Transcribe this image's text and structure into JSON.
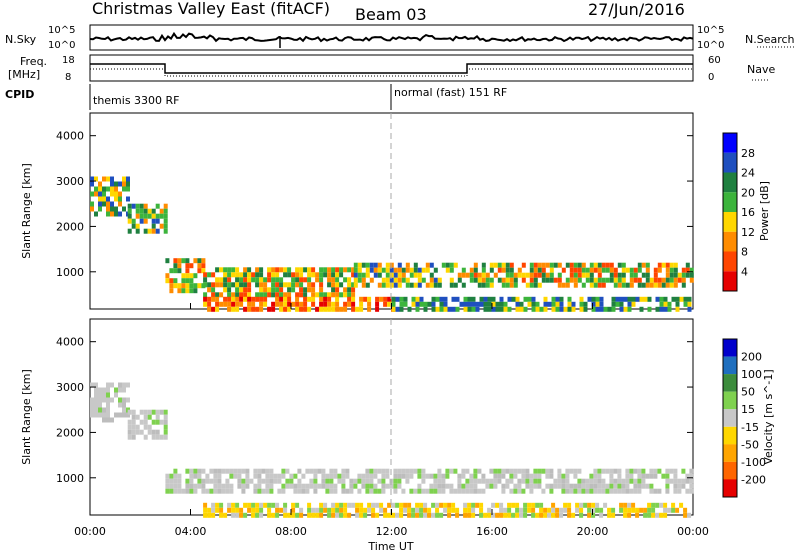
{
  "header": {
    "title": "Christmas Valley East (fitACF)",
    "beam": "Beam 03",
    "date": "27/Jun/2016"
  },
  "panels": {
    "nsky": {
      "label": "N.Sky",
      "y_ticks": [
        "10^5",
        "10^0"
      ],
      "right_label": "N.Search",
      "right_ticks": [
        "10^5",
        "10^0"
      ]
    },
    "freq": {
      "label_top": "Freq.",
      "label_bottom": "[MHz]",
      "y_ticks": [
        "18",
        "8"
      ],
      "right_label": "Nave",
      "right_ticks": [
        "60",
        "0"
      ]
    },
    "cpid": {
      "label": "CPID",
      "modes": [
        "themis 3300 RF",
        "normal (fast) 151 RF"
      ]
    }
  },
  "x_axis": {
    "label": "Time UT",
    "ticks": [
      "00:00",
      "04:00",
      "08:00",
      "12:00",
      "16:00",
      "20:00",
      "00:00"
    ]
  },
  "chart_data": [
    {
      "type": "heatmap",
      "name": "power",
      "ylabel": "Slant Range [km]",
      "yticks": [
        1000,
        2000,
        3000,
        4000
      ],
      "ylim": [
        180,
        4500
      ],
      "xlim_hours": [
        0,
        24
      ],
      "colorbar_label": "Power [dB]",
      "colorbar_ticks": [
        4,
        8,
        12,
        16,
        20,
        24,
        28
      ],
      "colorbar_colors": [
        "#0000ff",
        "#1f4fbf",
        "#1f8040",
        "#3cb43c",
        "#ffd700",
        "#ff8c00",
        "#ff4500",
        "#e60000"
      ],
      "bands": [
        {
          "t": [
            0.0,
            1.5
          ],
          "r": [
            2300,
            3100
          ],
          "level": "mid"
        },
        {
          "t": [
            1.5,
            3.0
          ],
          "r": [
            1900,
            2500
          ],
          "level": "mid"
        },
        {
          "t": [
            3.0,
            4.5
          ],
          "r": [
            600,
            1300
          ],
          "level": "high"
        },
        {
          "t": [
            4.5,
            10.5
          ],
          "r": [
            450,
            1100
          ],
          "level": "high"
        },
        {
          "t": [
            4.5,
            12.0
          ],
          "r": [
            200,
            450
          ],
          "level": "peak"
        },
        {
          "t": [
            10.5,
            14.0
          ],
          "r": [
            700,
            1200
          ],
          "level": "mid"
        },
        {
          "t": [
            14.0,
            23.9
          ],
          "r": [
            650,
            1200
          ],
          "level": "high"
        },
        {
          "t": [
            12.0,
            23.9
          ],
          "r": [
            200,
            450
          ],
          "level": "low"
        }
      ]
    },
    {
      "type": "heatmap",
      "name": "velocity",
      "ylabel": "Slant Range [km]",
      "yticks": [
        1000,
        2000,
        3000,
        4000
      ],
      "ylim": [
        180,
        4500
      ],
      "xlim_hours": [
        0,
        24
      ],
      "colorbar_label": "Velocity [m s^-1]",
      "colorbar_ticks": [
        200,
        100,
        50,
        15,
        -15,
        -50,
        -100,
        -200
      ],
      "colorbar_colors": [
        "#0000cc",
        "#1f6fbf",
        "#3c8c3c",
        "#7fd14f",
        "#c8c8c8",
        "#ffd700",
        "#ffa500",
        "#ff6600",
        "#e60000"
      ],
      "bands": [
        {
          "t": [
            0.0,
            1.5
          ],
          "r": [
            2300,
            3100
          ],
          "level": "gray"
        },
        {
          "t": [
            1.5,
            3.0
          ],
          "r": [
            1900,
            2500
          ],
          "level": "gray"
        },
        {
          "t": [
            3.0,
            23.9
          ],
          "r": [
            650,
            1200
          ],
          "level": "gray"
        },
        {
          "t": [
            4.5,
            23.9
          ],
          "r": [
            200,
            450
          ],
          "level": "yellow"
        }
      ]
    }
  ]
}
